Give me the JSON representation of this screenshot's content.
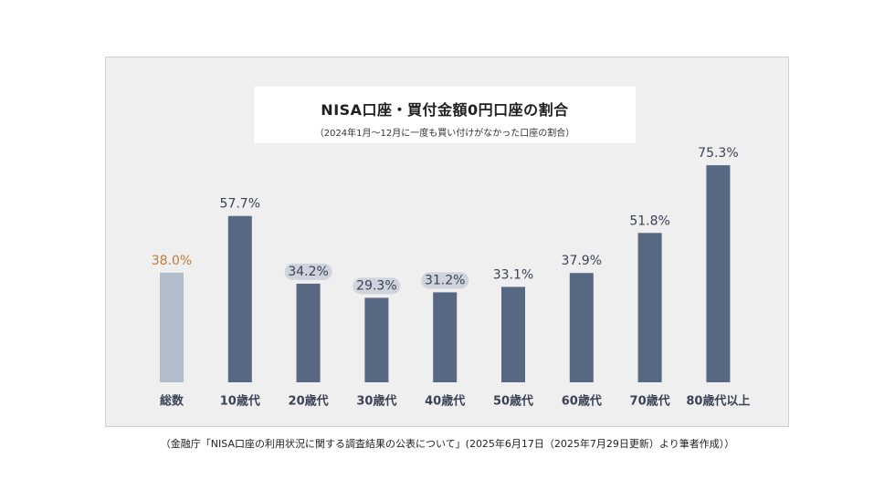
{
  "title": "NISA口座・買付金額0円口座の割合",
  "subtitle": "（2024年1月～12月に一度も買い付けがなかった口座の割合）",
  "source": "（金融庁「NISA口座の利用状況に関する調査結果の公表について」(2025年6月17日（2025年7月29日更新）より筆者作成））",
  "colors": {
    "bar": "#586882",
    "bar_total": "#b3bccb",
    "label": "#3a4256",
    "label_total": "#c07a3a",
    "highlight": "#cfd3dc",
    "panel": "#efefef"
  },
  "chart_data": {
    "type": "bar",
    "title": "NISA口座・買付金額0円口座の割合",
    "subtitle": "（2024年1月～12月に一度も買い付けがなかった口座の割合）",
    "categories": [
      "総数",
      "10歳代",
      "20歳代",
      "30歳代",
      "40歳代",
      "50歳代",
      "60歳代",
      "70歳代",
      "80歳代以上"
    ],
    "values": [
      38.0,
      57.7,
      34.2,
      29.3,
      31.2,
      33.1,
      37.9,
      51.8,
      75.3
    ],
    "labels": [
      "38.0%",
      "57.7%",
      "34.2%",
      "29.3%",
      "31.2%",
      "33.1%",
      "37.9%",
      "51.8%",
      "75.3%"
    ],
    "highlighted": [
      "20歳代",
      "30歳代",
      "40歳代"
    ],
    "unit": "%",
    "ylim": [
      0,
      100
    ],
    "grid": false,
    "legend": "none"
  }
}
